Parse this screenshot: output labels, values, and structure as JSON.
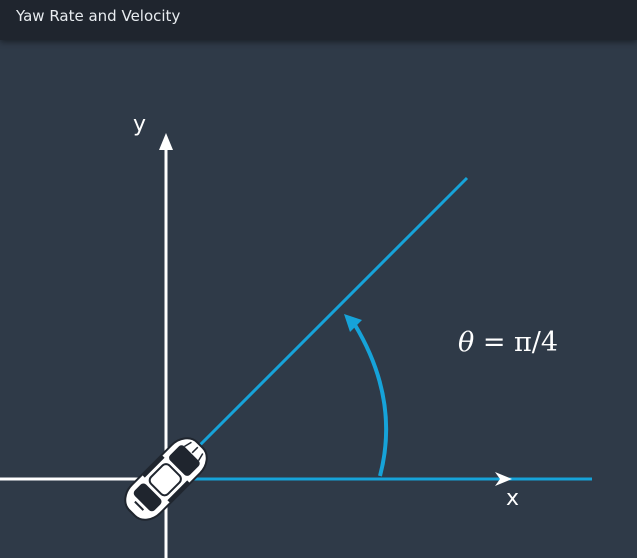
{
  "window": {
    "title": "Yaw Rate and Velocity"
  },
  "diagram": {
    "y_axis_label": "y",
    "x_axis_label": "x",
    "angle_label": {
      "var": "θ",
      "rest": " = π/4"
    },
    "colors": {
      "background": "#2f3a48",
      "axis": "#ffffff",
      "accent": "#16a3d9"
    },
    "icons": {
      "vehicle": "car-top-view-icon"
    }
  }
}
